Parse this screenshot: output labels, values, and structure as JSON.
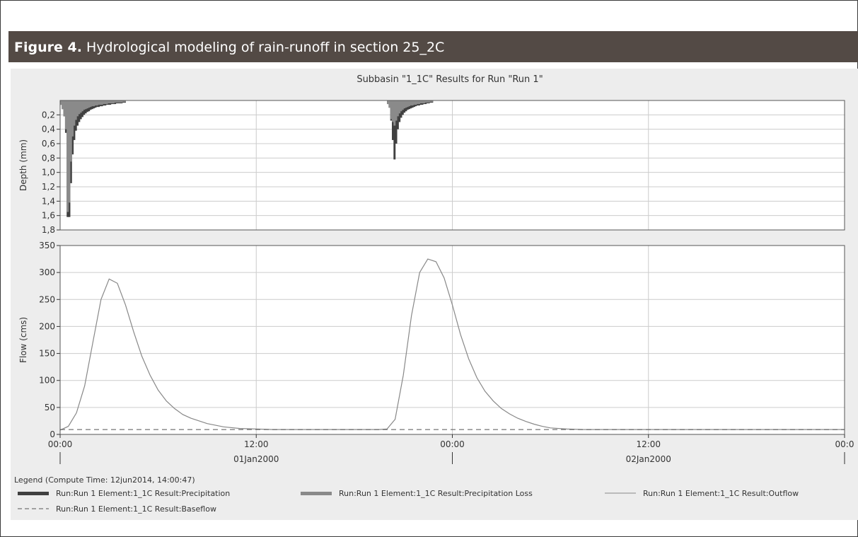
{
  "figure": {
    "caption_label": "Figure 4.",
    "caption_text": " Hydrological modeling of rain-runoff in section 25_2C"
  },
  "chart_data": {
    "title": "Subbasin \"1_1C\" Results for Run \"Run 1\"",
    "colors": {
      "precipitation": "#404040",
      "precipitation_loss": "#8a8a8a",
      "outflow": "#888888",
      "baseflow": "#555555",
      "grid": "#cccccc"
    },
    "x_axis": {
      "range_hours": [
        0,
        48
      ],
      "ticks": [
        {
          "hour": 0,
          "label": "00:00"
        },
        {
          "hour": 12,
          "label": "12:00"
        },
        {
          "hour": 24,
          "label": "00:00"
        },
        {
          "hour": 36,
          "label": "12:00"
        },
        {
          "hour": 48,
          "label": "00:0"
        }
      ],
      "date_labels": [
        {
          "hour": 12,
          "label": "01Jan2000"
        },
        {
          "hour": 36,
          "label": "02Jan2000"
        }
      ],
      "date_separators_hours": [
        0,
        24,
        48
      ]
    },
    "panels": [
      {
        "type": "bar",
        "ylabel": "Depth (mm)",
        "ylim": [
          0,
          1.8
        ],
        "inverted": true,
        "yticks": [
          "0,2",
          "0,4",
          "0,6",
          "0,8",
          "1,0",
          "1,2",
          "1,4",
          "1,6",
          "1,8"
        ],
        "ytick_values": [
          0.2,
          0.4,
          0.6,
          0.8,
          1.0,
          1.2,
          1.4,
          1.6,
          1.8
        ],
        "series": [
          {
            "name": "Run:Run 1 Element:1_1C Result:Precipitation",
            "x_hours": [
              0.0,
              0.1,
              0.2,
              0.3,
              0.4,
              0.5,
              0.6,
              0.7,
              0.8,
              0.9,
              1.0,
              1.1,
              1.2,
              1.3,
              1.4,
              1.5,
              1.6,
              1.7,
              1.8,
              1.9,
              2.0,
              2.1,
              2.2,
              2.3,
              2.4,
              2.5,
              2.6,
              2.7,
              2.8,
              2.9,
              3.0,
              3.1,
              3.2,
              3.3,
              3.4,
              3.5,
              3.6,
              3.7,
              3.8,
              3.9,
              20.0,
              20.1,
              20.2,
              20.3,
              20.4,
              20.5,
              20.6,
              20.7,
              20.8,
              20.9,
              21.0,
              21.1,
              21.2,
              21.3,
              21.4,
              21.5,
              21.6,
              21.7,
              21.8,
              21.9,
              22.0,
              22.1,
              22.2,
              22.3,
              22.4,
              22.5,
              22.6,
              22.7
            ],
            "values": [
              0.06,
              0.12,
              0.22,
              0.45,
              1.62,
              1.62,
              1.15,
              0.75,
              0.55,
              0.42,
              0.35,
              0.3,
              0.26,
              0.23,
              0.2,
              0.18,
              0.16,
              0.15,
              0.13,
              0.12,
              0.11,
              0.1,
              0.09,
              0.09,
              0.08,
              0.08,
              0.07,
              0.07,
              0.06,
              0.06,
              0.06,
              0.05,
              0.05,
              0.05,
              0.04,
              0.04,
              0.04,
              0.04,
              0.03,
              0.03,
              0.05,
              0.1,
              0.28,
              0.55,
              0.82,
              0.6,
              0.4,
              0.3,
              0.24,
              0.2,
              0.17,
              0.15,
              0.13,
              0.12,
              0.11,
              0.1,
              0.09,
              0.08,
              0.07,
              0.07,
              0.06,
              0.06,
              0.05,
              0.05,
              0.04,
              0.04,
              0.03,
              0.03
            ]
          },
          {
            "name": "Run:Run 1 Element:1_1C Result:Precipitation Loss",
            "x_hours": [
              0.0,
              0.1,
              0.2,
              0.3,
              0.4,
              0.5,
              0.6,
              0.7,
              0.8,
              0.9,
              1.0,
              1.1,
              1.2,
              1.3,
              1.4,
              1.5,
              1.6,
              1.7,
              1.8,
              1.9,
              2.0,
              2.1,
              2.2,
              2.3,
              2.4,
              2.5,
              2.6,
              2.7,
              2.8,
              2.9,
              3.0,
              3.1,
              3.2,
              3.3,
              3.4,
              3.5,
              3.6,
              3.7,
              3.8,
              3.9,
              20.0,
              20.1,
              20.2,
              20.3,
              20.4,
              20.5,
              20.6,
              20.7,
              20.8,
              20.9,
              21.0,
              21.1,
              21.2,
              21.3,
              21.4,
              21.5,
              21.6,
              21.7,
              21.8,
              21.9,
              22.0,
              22.1,
              22.2,
              22.3,
              22.4,
              22.5,
              22.6,
              22.7
            ],
            "values": [
              0.06,
              0.12,
              0.22,
              0.4,
              1.55,
              1.42,
              0.85,
              0.5,
              0.35,
              0.27,
              0.22,
              0.19,
              0.17,
              0.15,
              0.13,
              0.12,
              0.11,
              0.1,
              0.09,
              0.08,
              0.08,
              0.07,
              0.07,
              0.06,
              0.06,
              0.06,
              0.05,
              0.05,
              0.05,
              0.04,
              0.04,
              0.04,
              0.04,
              0.03,
              0.03,
              0.03,
              0.03,
              0.03,
              0.02,
              0.02,
              0.05,
              0.1,
              0.26,
              0.3,
              0.35,
              0.28,
              0.22,
              0.18,
              0.15,
              0.13,
              0.11,
              0.1,
              0.09,
              0.08,
              0.07,
              0.07,
              0.06,
              0.06,
              0.05,
              0.05,
              0.04,
              0.04,
              0.04,
              0.03,
              0.03,
              0.03,
              0.02,
              0.02
            ]
          }
        ]
      },
      {
        "type": "line",
        "ylabel": "Flow (cms)",
        "ylim": [
          0,
          350
        ],
        "yticks": [
          "0",
          "50",
          "100",
          "150",
          "200",
          "250",
          "300",
          "350"
        ],
        "ytick_values": [
          0,
          50,
          100,
          150,
          200,
          250,
          300,
          350
        ],
        "series": [
          {
            "name": "Run:Run 1 Element:1_1C Result:Outflow",
            "style": "solid",
            "x_hours": [
              0,
              0.5,
              1,
              1.5,
              2,
              2.5,
              3,
              3.5,
              4,
              4.5,
              5,
              5.5,
              6,
              6.5,
              7,
              7.5,
              8,
              9,
              10,
              11,
              12,
              13,
              14,
              15,
              16,
              17,
              18,
              19,
              19.5,
              20,
              20.5,
              21,
              21.5,
              22,
              22.5,
              23,
              23.5,
              24,
              24.5,
              25,
              25.5,
              26,
              26.5,
              27,
              27.5,
              28,
              28.5,
              29,
              29.5,
              30,
              31,
              32,
              33,
              34,
              35,
              36,
              40,
              44,
              48
            ],
            "values": [
              8,
              15,
              40,
              90,
              170,
              250,
              288,
              280,
              240,
              190,
              145,
              110,
              82,
              62,
              48,
              37,
              30,
              20,
              14,
              11,
              10,
              9,
              9,
              9,
              9,
              9,
              9,
              9,
              9,
              10,
              28,
              110,
              220,
              300,
              325,
              320,
              290,
              240,
              185,
              140,
              105,
              80,
              62,
              48,
              38,
              30,
              24,
              19,
              15,
              12,
              10,
              9,
              9,
              9,
              9,
              9,
              9,
              9,
              9
            ]
          },
          {
            "name": "Run:Run 1 Element:1_1C Result:Baseflow",
            "style": "dashed",
            "x_hours": [
              0,
              48
            ],
            "values": [
              9,
              9
            ]
          }
        ]
      }
    ],
    "legend": {
      "title": "Legend (Compute Time: 12jun2014, 14:00:47)",
      "placement": "bottom",
      "entries": [
        {
          "label": "Run:Run 1 Element:1_1C Result:Precipitation",
          "swatch": "thick-dark"
        },
        {
          "label": "Run:Run 1 Element:1_1C Result:Precipitation Loss",
          "swatch": "thick-gray"
        },
        {
          "label": "Run:Run 1 Element:1_1C Result:Outflow",
          "swatch": "thin-line"
        },
        {
          "label": "Run:Run 1 Element:1_1C Result:Baseflow",
          "swatch": "dashed-line"
        }
      ]
    },
    "grid": true
  }
}
